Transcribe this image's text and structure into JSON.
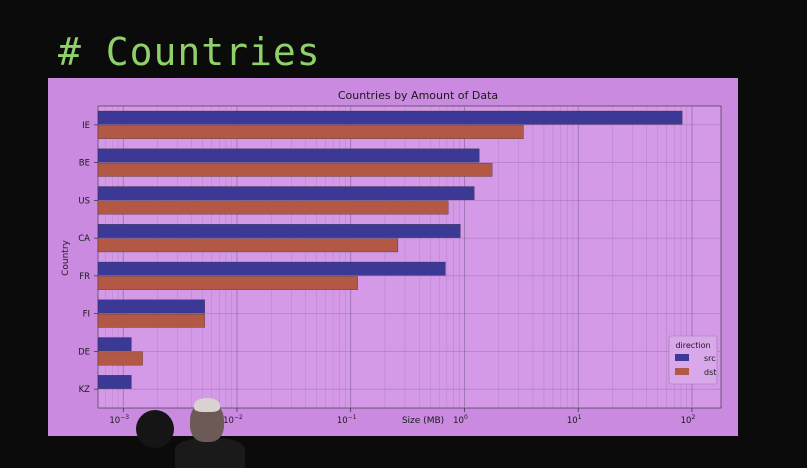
{
  "slide": {
    "heading": "# Countries"
  },
  "chart_data": {
    "type": "bar",
    "orientation": "horizontal",
    "title": "Countries by Amount of Data",
    "xlabel": "Size (MB)",
    "ylabel": "Country",
    "x_scale": "log",
    "xlim": [
      0.0006,
      180
    ],
    "xticks": [
      {
        "value": 0.001,
        "base": "10",
        "exp": "−3"
      },
      {
        "value": 0.01,
        "base": "10",
        "exp": "−2"
      },
      {
        "value": 0.1,
        "base": "10",
        "exp": "−1"
      },
      {
        "value": 1,
        "base": "10",
        "exp": "0"
      },
      {
        "value": 10,
        "base": "10",
        "exp": "1"
      },
      {
        "value": 100,
        "base": "10",
        "exp": "2"
      }
    ],
    "grid": true,
    "categories": [
      "IE",
      "BE",
      "US",
      "CA",
      "FR",
      "FI",
      "DE",
      "KZ"
    ],
    "series": [
      {
        "name": "src",
        "color": "#3b3896",
        "values": [
          82,
          1.35,
          1.22,
          0.92,
          0.68,
          0.0052,
          0.00118,
          0.00118
        ]
      },
      {
        "name": "dst",
        "color": "#b25845",
        "values": [
          3.3,
          1.75,
          0.72,
          0.26,
          0.115,
          0.0052,
          0.00148,
          null
        ]
      }
    ],
    "legend": {
      "title": "direction",
      "position": "lower-right"
    },
    "colors": {
      "plot_bg": "#d49ae8",
      "screen_bg": "#c98ae0",
      "grid": "#8f6aa3"
    }
  }
}
